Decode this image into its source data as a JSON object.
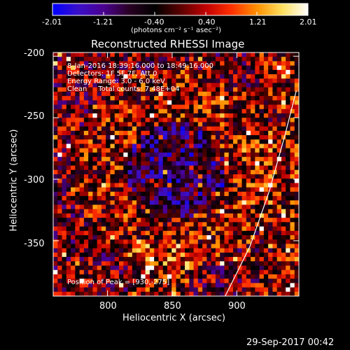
{
  "colorbar": {
    "ticks": [
      "-2.01",
      "-1.21",
      "-0.40",
      "0.40",
      "1.21",
      "2.01"
    ],
    "range": [
      -2.01,
      2.01
    ],
    "unit_label": "(photons cm⁻² s⁻¹ asec⁻²)",
    "colors": [
      "#0000ff",
      "#3a10c8",
      "#4a0090",
      "#2a0024",
      "#000000",
      "#5a0000",
      "#c00000",
      "#ff3000",
      "#ff9000",
      "#ffe060",
      "#ffffff"
    ]
  },
  "chart_data": {
    "type": "heatmap",
    "title": "Reconstructed RHESSI Image",
    "xlabel": "Heliocentric X (arcsec)",
    "ylabel": "Heliocentric Y (arcsec)",
    "xlim": [
      758,
      948
    ],
    "ylim": [
      -395,
      -197
    ],
    "xticks": [
      800,
      850,
      900
    ],
    "yticks": [
      -200,
      -250,
      -300,
      -350
    ],
    "value_range": [
      -2.01,
      2.01
    ],
    "annotations": [
      "8-Jan-2016 18:39:16.000 to 18:49:16.000",
      "Detectors: 1F 5F 7F, Att 0",
      "Energy Range: 3.0 - 6.0 keV",
      "Clean     Total counts: 7.48E+04",
      "Position of Peak = [930,-275]"
    ],
    "limb_curve": [
      [
        891,
        -395
      ],
      [
        910,
        -355
      ],
      [
        925,
        -310
      ],
      [
        937,
        -265
      ],
      [
        946,
        -228
      ]
    ],
    "limb_color": "#ffffff"
  },
  "footer": {
    "timestamp": "29-Sep-2017 00:42"
  }
}
